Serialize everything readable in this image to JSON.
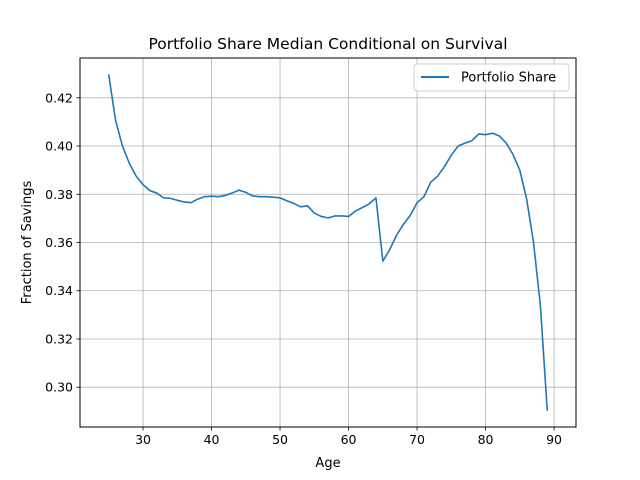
{
  "chart_data": {
    "type": "line",
    "title": "Portfolio Share Median Conditional on Survival",
    "xlabel": "Age",
    "ylabel": "Fraction of Savings",
    "xlim": [
      20.8,
      93.2
    ],
    "ylim": [
      0.2835,
      0.4365
    ],
    "xticks": [
      30,
      40,
      50,
      60,
      70,
      80,
      90
    ],
    "yticks": [
      0.3,
      0.32,
      0.34,
      0.36,
      0.38,
      0.4,
      0.42
    ],
    "xtick_labels": [
      "30",
      "40",
      "50",
      "60",
      "70",
      "80",
      "90"
    ],
    "ytick_labels": [
      "0.30",
      "0.32",
      "0.34",
      "0.36",
      "0.38",
      "0.40",
      "0.42"
    ],
    "grid": true,
    "legend_position": "top-right",
    "series_color": "#1f77b4",
    "series": [
      {
        "name": "Portfolio Share",
        "x": [
          25,
          26,
          27,
          28,
          29,
          30,
          31,
          32,
          33,
          34,
          35,
          36,
          37,
          38,
          39,
          40,
          41,
          42,
          43,
          44,
          45,
          46,
          47,
          48,
          49,
          50,
          51,
          52,
          53,
          54,
          55,
          56,
          57,
          58,
          59,
          60,
          61,
          62,
          63,
          64,
          65,
          66,
          67,
          68,
          69,
          70,
          71,
          72,
          73,
          74,
          75,
          76,
          77,
          78,
          79,
          80,
          81,
          82,
          83,
          84,
          85,
          86,
          87,
          88,
          89
        ],
        "y": [
          0.4295,
          0.4105,
          0.4,
          0.3928,
          0.3875,
          0.384,
          0.3815,
          0.3805,
          0.3785,
          0.3783,
          0.3775,
          0.3768,
          0.3765,
          0.378,
          0.379,
          0.3792,
          0.379,
          0.3795,
          0.3805,
          0.3817,
          0.3808,
          0.3793,
          0.379,
          0.379,
          0.3788,
          0.3785,
          0.3773,
          0.3762,
          0.3748,
          0.3752,
          0.3722,
          0.3708,
          0.3702,
          0.371,
          0.371,
          0.3708,
          0.373,
          0.3745,
          0.376,
          0.3785,
          0.3523,
          0.357,
          0.363,
          0.3675,
          0.3712,
          0.3765,
          0.379,
          0.385,
          0.3875,
          0.3915,
          0.3962,
          0.4,
          0.4012,
          0.4022,
          0.405,
          0.4047,
          0.4053,
          0.4042,
          0.4013,
          0.3965,
          0.39,
          0.378,
          0.36,
          0.334,
          0.2905
        ]
      }
    ]
  }
}
